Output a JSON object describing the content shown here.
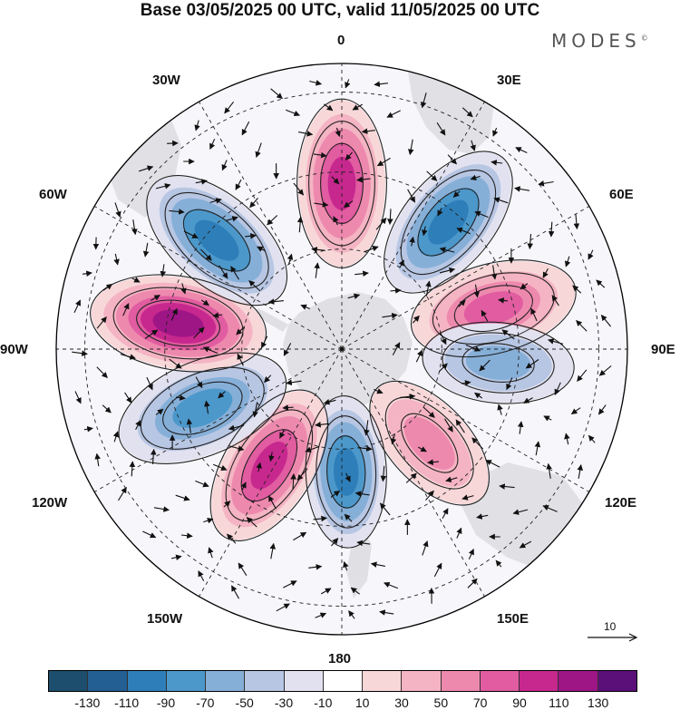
{
  "title": "Base 03/05/2025 00 UTC, valid 11/05/2025 00 UTC",
  "brand": {
    "text": "MODES",
    "mark": "©"
  },
  "meridian_labels": {
    "deg0": "0",
    "e30": "30E",
    "e60": "60E",
    "e90": "90E",
    "e120": "120E",
    "e150": "150E",
    "deg180": "180",
    "w150": "150W",
    "w120": "120W",
    "w90": "90W",
    "w60": "60W",
    "w30": "30W"
  },
  "vector_reference": {
    "label": "10"
  },
  "colorbar": {
    "colors": [
      "#1d4e6e",
      "#245f94",
      "#2e7fb9",
      "#4c98cb",
      "#86afd8",
      "#b7c6e3",
      "#e1e1f0",
      "#ffffff",
      "#f8d7d8",
      "#f4b4c3",
      "#ee89ae",
      "#e15ca0",
      "#c7288e",
      "#9e1586",
      "#5b0f79"
    ],
    "ticks": [
      "-130",
      "-110",
      "-90",
      "-70",
      "-50",
      "-30",
      "-10",
      "10",
      "30",
      "50",
      "70",
      "90",
      "110",
      "130"
    ]
  },
  "anomaly_lobes": [
    {
      "lon": 0,
      "dist": 0.58,
      "value": 110,
      "size": 1.0
    },
    {
      "lon": 40,
      "dist": 0.58,
      "value": -100,
      "size": 1.0
    },
    {
      "lon": 75,
      "dist": 0.55,
      "value": 85,
      "size": 1.0
    },
    {
      "lon": 95,
      "dist": 0.55,
      "value": -60,
      "size": 0.9
    },
    {
      "lon": 137,
      "dist": 0.45,
      "value": 75,
      "size": 0.9
    },
    {
      "lon": 178,
      "dist": 0.43,
      "value": -105,
      "size": 0.9
    },
    {
      "lon": 212,
      "dist": 0.48,
      "value": 115,
      "size": 1.0
    },
    {
      "lon": 247,
      "dist": 0.53,
      "value": -95,
      "size": 1.05
    },
    {
      "lon": 279,
      "dist": 0.58,
      "value": 125,
      "size": 1.05
    },
    {
      "lon": 311,
      "dist": 0.58,
      "value": -115,
      "size": 1.0
    }
  ]
}
